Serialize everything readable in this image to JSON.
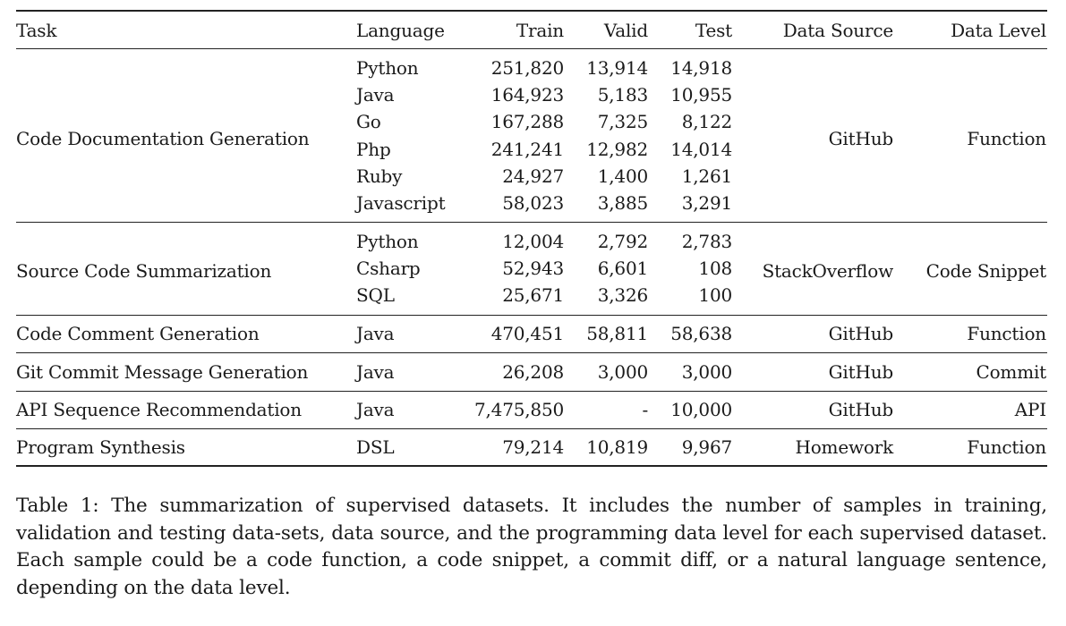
{
  "table": {
    "headers": [
      "Task",
      "Language",
      "Train",
      "Valid",
      "Test",
      "Data Source",
      "Data Level"
    ],
    "groups": [
      {
        "task": "Code Documentation Generation",
        "data_source": "GitHub",
        "data_level": "Function",
        "rows": [
          {
            "language": "Python",
            "train": "251,820",
            "valid": "13,914",
            "test": "14,918"
          },
          {
            "language": "Java",
            "train": "164,923",
            "valid": "5,183",
            "test": "10,955"
          },
          {
            "language": "Go",
            "train": "167,288",
            "valid": "7,325",
            "test": "8,122"
          },
          {
            "language": "Php",
            "train": "241,241",
            "valid": "12,982",
            "test": "14,014"
          },
          {
            "language": "Ruby",
            "train": "24,927",
            "valid": "1,400",
            "test": "1,261"
          },
          {
            "language": "Javascript",
            "train": "58,023",
            "valid": "3,885",
            "test": "3,291"
          }
        ]
      },
      {
        "task": "Source Code Summarization",
        "data_source": "StackOverflow",
        "data_level": "Code Snippet",
        "rows": [
          {
            "language": "Python",
            "train": "12,004",
            "valid": "2,792",
            "test": "2,783"
          },
          {
            "language": "Csharp",
            "train": "52,943",
            "valid": "6,601",
            "test": "108"
          },
          {
            "language": "SQL",
            "train": "25,671",
            "valid": "3,326",
            "test": "100"
          }
        ]
      },
      {
        "task": "Code Comment Generation",
        "data_source": "GitHub",
        "data_level": "Function",
        "rows": [
          {
            "language": "Java",
            "train": "470,451",
            "valid": "58,811",
            "test": "58,638"
          }
        ]
      },
      {
        "task": "Git Commit Message Generation",
        "data_source": "GitHub",
        "data_level": "Commit",
        "rows": [
          {
            "language": "Java",
            "train": "26,208",
            "valid": "3,000",
            "test": "3,000"
          }
        ]
      },
      {
        "task": "API Sequence Recommendation",
        "data_source": "GitHub",
        "data_level": "API",
        "rows": [
          {
            "language": "Java",
            "train": "7,475,850",
            "valid": "-",
            "test": "10,000"
          }
        ]
      },
      {
        "task": "Program Synthesis",
        "data_source": "Homework",
        "data_level": "Function",
        "rows": [
          {
            "language": "DSL",
            "train": "79,214",
            "valid": "10,819",
            "test": "9,967"
          }
        ]
      }
    ]
  },
  "caption": "Table 1: The summarization of supervised datasets. It includes the number of samples in training, validation and testing data-sets, data source, and the programming data level for each supervised dataset. Each sample could be a code function, a code snippet, a commit diff, or a natural language sentence, depending on the data level."
}
